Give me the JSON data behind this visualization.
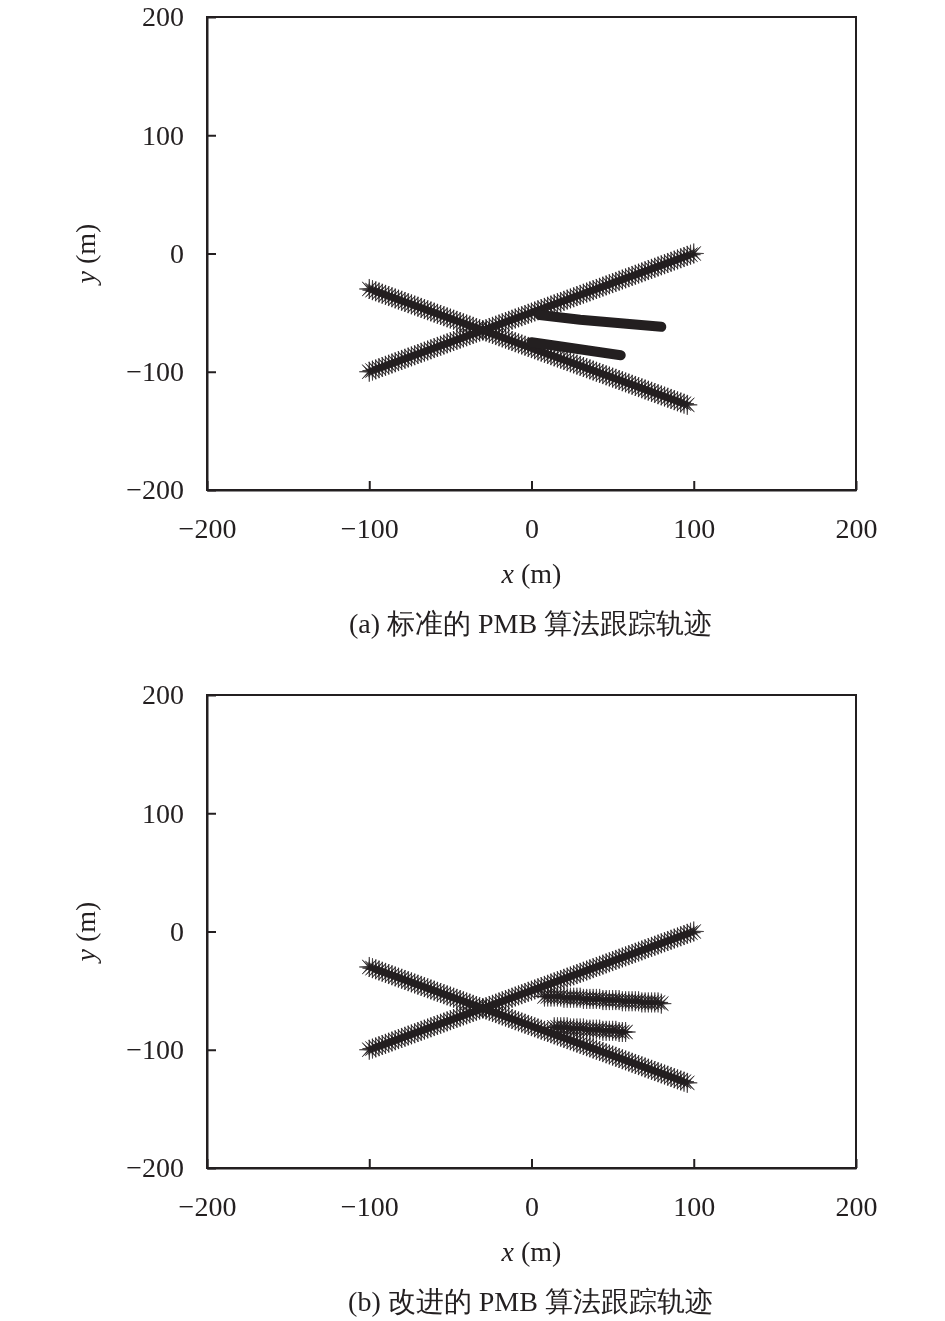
{
  "chart_data": [
    {
      "type": "scatter",
      "title": "(a) 标准的 PMB 算法跟踪轨迹",
      "xlabel": "x (m)",
      "ylabel": "y (m)",
      "xlim": [
        -200,
        200
      ],
      "ylim": [
        -200,
        200
      ],
      "xticks": [
        -200,
        -100,
        0,
        100,
        200
      ],
      "yticks": [
        -200,
        -100,
        0,
        100,
        200
      ],
      "marker": "star",
      "series": [
        {
          "color": "#231f20",
          "x": [
            -100,
            -98,
            -96,
            -94,
            -92,
            -90,
            -88,
            -86,
            -84,
            -82,
            -80,
            -78,
            -76,
            -74,
            -72,
            -70,
            -68,
            -66,
            -64,
            -62,
            -60,
            -58,
            -56,
            -54,
            -52,
            -50,
            -48,
            -46,
            -44,
            -42,
            -40,
            -38,
            -36,
            -34,
            -32,
            -30,
            -28,
            -26,
            -24,
            -22,
            -20,
            -18,
            -16,
            -14,
            -12,
            -10,
            -8,
            -6,
            -4,
            -2,
            0,
            2,
            4,
            6,
            8,
            10,
            12,
            14,
            16,
            18,
            20,
            22,
            24,
            26,
            28,
            30,
            32,
            34,
            36,
            38,
            40,
            42,
            44,
            46,
            48,
            50,
            52,
            54,
            56,
            58,
            60,
            62,
            64,
            66,
            68,
            70,
            72,
            74,
            76,
            78,
            80,
            82,
            84,
            86,
            88,
            90,
            92,
            94,
            96,
            98,
            100
          ],
          "values": [
            -100,
            -99,
            -98,
            -97,
            -96,
            -95,
            -94,
            -93,
            -92,
            -91,
            -90,
            -89,
            -88,
            -87,
            -86,
            -85,
            -84,
            -83,
            -82,
            -81,
            -80,
            -79,
            -78,
            -77,
            -76,
            -75,
            -74,
            -73,
            -72,
            -71,
            -70,
            -69,
            -68,
            -67,
            -66,
            -65,
            -64,
            -63,
            -62,
            -61,
            -60,
            -59,
            -58,
            -57,
            -56,
            -55,
            -54,
            -53,
            -52,
            -51,
            -50,
            -49,
            -48,
            -47,
            -46,
            -45,
            -44,
            -43,
            -42,
            -41,
            -40,
            -39,
            -38,
            -37,
            -36,
            -35,
            -34,
            -33,
            -32,
            -31,
            -30,
            -29,
            -28,
            -27,
            -26,
            -25,
            -24,
            -23,
            -22,
            -21,
            -20,
            -19,
            -18,
            -17,
            -16,
            -15,
            -14,
            -13,
            -12,
            -11,
            -10,
            -9,
            -8,
            -7,
            -6,
            -5,
            -4,
            -3,
            -2,
            -1,
            0
          ]
        },
        {
          "color": "#231f20",
          "x": [
            -100,
            -98,
            -96,
            -94,
            -92,
            -90,
            -88,
            -86,
            -84,
            -82,
            -80,
            -78,
            -76,
            -74,
            -72,
            -70,
            -68,
            -66,
            -64,
            -62,
            -60,
            -58,
            -56,
            -54,
            -52,
            -50,
            -48,
            -46,
            -44,
            -42,
            -40,
            -38,
            -36,
            -34,
            -32,
            -30,
            -28,
            -26,
            -24,
            -22,
            -20,
            -18,
            -16,
            -14,
            -12,
            -10,
            -8,
            -6,
            -4,
            -2,
            0,
            2,
            4,
            6,
            8,
            10,
            12,
            14,
            16,
            18,
            20,
            22,
            24,
            26,
            28,
            30,
            32,
            34,
            36,
            38,
            40,
            42,
            44,
            46,
            48,
            50,
            52,
            54,
            56,
            58,
            60,
            62,
            64,
            66,
            68,
            70,
            72,
            74,
            76,
            78,
            80,
            82,
            84,
            86,
            88,
            90,
            92,
            94,
            96
          ],
          "values": [
            -30,
            -31,
            -32,
            -33,
            -34,
            -35,
            -36,
            -37,
            -38,
            -39,
            -40,
            -41,
            -42,
            -43,
            -44,
            -45,
            -46,
            -47,
            -48,
            -49,
            -50,
            -51,
            -52,
            -53,
            -54,
            -55,
            -56,
            -57,
            -58,
            -59,
            -60,
            -61,
            -62,
            -63,
            -64,
            -65,
            -66,
            -67,
            -68,
            -69,
            -70,
            -71,
            -72,
            -73,
            -74,
            -75,
            -76,
            -77,
            -78,
            -79,
            -80,
            -81,
            -82,
            -83,
            -84,
            -85,
            -86,
            -87,
            -88,
            -89,
            -90,
            -91,
            -92,
            -93,
            -94,
            -95,
            -96,
            -97,
            -98,
            -99,
            -100,
            -101,
            -102,
            -103,
            -104,
            -105,
            -106,
            -107,
            -108,
            -109,
            -110,
            -111,
            -112,
            -113,
            -114,
            -115,
            -116,
            -117,
            -118,
            -119,
            -120,
            -121,
            -122,
            -123,
            -124,
            -125,
            -126,
            -127,
            -128
          ]
        },
        {
          "type": "line",
          "marker": "none",
          "color": "#231f20",
          "x": [
            5,
            30,
            55,
            80
          ],
          "values": [
            -52,
            -56,
            -59,
            -62
          ]
        },
        {
          "type": "line",
          "marker": "none",
          "color": "#231f20",
          "x": [
            0,
            15,
            35,
            55
          ],
          "values": [
            -75,
            -78,
            -82,
            -86
          ]
        }
      ]
    },
    {
      "type": "scatter",
      "title": "(b) 改进的 PMB 算法跟踪轨迹",
      "xlabel": "x (m)",
      "ylabel": "y (m)",
      "xlim": [
        -200,
        200
      ],
      "ylim": [
        -200,
        200
      ],
      "xticks": [
        -200,
        -100,
        0,
        100,
        200
      ],
      "yticks": [
        -200,
        -100,
        0,
        100,
        200
      ],
      "marker": "star",
      "series": [
        {
          "color": "#231f20",
          "x": [
            -100,
            -98,
            -96,
            -94,
            -92,
            -90,
            -88,
            -86,
            -84,
            -82,
            -80,
            -78,
            -76,
            -74,
            -72,
            -70,
            -68,
            -66,
            -64,
            -62,
            -60,
            -58,
            -56,
            -54,
            -52,
            -50,
            -48,
            -46,
            -44,
            -42,
            -40,
            -38,
            -36,
            -34,
            -32,
            -30,
            -28,
            -26,
            -24,
            -22,
            -20,
            -18,
            -16,
            -14,
            -12,
            -10,
            -8,
            -6,
            -4,
            -2,
            0,
            2,
            4,
            6,
            8,
            10,
            12,
            14,
            16,
            18,
            20,
            22,
            24,
            26,
            28,
            30,
            32,
            34,
            36,
            38,
            40,
            42,
            44,
            46,
            48,
            50,
            52,
            54,
            56,
            58,
            60,
            62,
            64,
            66,
            68,
            70,
            72,
            74,
            76,
            78,
            80,
            82,
            84,
            86,
            88,
            90,
            92,
            94,
            96,
            98,
            100
          ],
          "values": [
            -100,
            -99,
            -98,
            -97,
            -96,
            -95,
            -94,
            -93,
            -92,
            -91,
            -90,
            -89,
            -88,
            -87,
            -86,
            -85,
            -84,
            -83,
            -82,
            -81,
            -80,
            -79,
            -78,
            -77,
            -76,
            -75,
            -74,
            -73,
            -72,
            -71,
            -70,
            -69,
            -68,
            -67,
            -66,
            -65,
            -64,
            -63,
            -62,
            -61,
            -60,
            -59,
            -58,
            -57,
            -56,
            -55,
            -54,
            -53,
            -52,
            -51,
            -50,
            -49,
            -48,
            -47,
            -46,
            -45,
            -44,
            -43,
            -42,
            -41,
            -40,
            -39,
            -38,
            -37,
            -36,
            -35,
            -34,
            -33,
            -32,
            -31,
            -30,
            -29,
            -28,
            -27,
            -26,
            -25,
            -24,
            -23,
            -22,
            -21,
            -20,
            -19,
            -18,
            -17,
            -16,
            -15,
            -14,
            -13,
            -12,
            -11,
            -10,
            -9,
            -8,
            -7,
            -6,
            -5,
            -4,
            -3,
            -2,
            -1,
            0
          ]
        },
        {
          "color": "#231f20",
          "x": [
            -100,
            -98,
            -96,
            -94,
            -92,
            -90,
            -88,
            -86,
            -84,
            -82,
            -80,
            -78,
            -76,
            -74,
            -72,
            -70,
            -68,
            -66,
            -64,
            -62,
            -60,
            -58,
            -56,
            -54,
            -52,
            -50,
            -48,
            -46,
            -44,
            -42,
            -40,
            -38,
            -36,
            -34,
            -32,
            -30,
            -28,
            -26,
            -24,
            -22,
            -20,
            -18,
            -16,
            -14,
            -12,
            -10,
            -8,
            -6,
            -4,
            -2,
            0,
            2,
            4,
            6,
            8,
            10,
            12,
            14,
            16,
            18,
            20,
            22,
            24,
            26,
            28,
            30,
            32,
            34,
            36,
            38,
            40,
            42,
            44,
            46,
            48,
            50,
            52,
            54,
            56,
            58,
            60,
            62,
            64,
            66,
            68,
            70,
            72,
            74,
            76,
            78,
            80,
            82,
            84,
            86,
            88,
            90,
            92,
            94,
            96
          ],
          "values": [
            -30,
            -31,
            -32,
            -33,
            -34,
            -35,
            -36,
            -37,
            -38,
            -39,
            -40,
            -41,
            -42,
            -43,
            -44,
            -45,
            -46,
            -47,
            -48,
            -49,
            -50,
            -51,
            -52,
            -53,
            -54,
            -55,
            -56,
            -57,
            -58,
            -59,
            -60,
            -61,
            -62,
            -63,
            -64,
            -65,
            -66,
            -67,
            -68,
            -69,
            -70,
            -71,
            -72,
            -73,
            -74,
            -75,
            -76,
            -77,
            -78,
            -79,
            -80,
            -81,
            -82,
            -83,
            -84,
            -85,
            -86,
            -87,
            -88,
            -89,
            -90,
            -91,
            -92,
            -93,
            -94,
            -95,
            -96,
            -97,
            -98,
            -99,
            -100,
            -101,
            -102,
            -103,
            -104,
            -105,
            -106,
            -107,
            -108,
            -109,
            -110,
            -111,
            -112,
            -113,
            -114,
            -115,
            -116,
            -117,
            -118,
            -119,
            -120,
            -121,
            -122,
            -123,
            -124,
            -125,
            -126,
            -127,
            -128
          ]
        },
        {
          "color": "#231f20",
          "x": [
            8,
            10,
            12,
            14,
            16,
            18,
            20,
            22,
            24,
            26,
            28,
            30,
            32,
            34,
            36,
            38,
            40,
            42,
            44,
            46,
            48,
            50,
            52,
            54,
            56,
            58,
            60,
            62,
            64,
            66,
            68,
            70,
            72,
            74,
            76,
            78,
            80
          ],
          "values": [
            -55,
            -55,
            -55,
            -55,
            -55,
            -55,
            -56,
            -56,
            -56,
            -56,
            -56,
            -56,
            -57,
            -57,
            -57,
            -57,
            -57,
            -57,
            -58,
            -58,
            -58,
            -58,
            -58,
            -58,
            -59,
            -59,
            -59,
            -59,
            -59,
            -59,
            -60,
            -60,
            -60,
            -60,
            -60,
            -60,
            -61
          ]
        },
        {
          "color": "#231f20",
          "x": [
            14,
            16,
            18,
            20,
            22,
            24,
            26,
            28,
            30,
            32,
            34,
            36,
            38,
            40,
            42,
            44,
            46,
            48,
            50,
            52,
            54,
            56,
            58
          ],
          "values": [
            -81,
            -81,
            -81,
            -81,
            -81,
            -82,
            -82,
            -82,
            -82,
            -82,
            -83,
            -83,
            -83,
            -83,
            -83,
            -84,
            -84,
            -84,
            -84,
            -84,
            -85,
            -85,
            -85
          ]
        }
      ]
    }
  ]
}
